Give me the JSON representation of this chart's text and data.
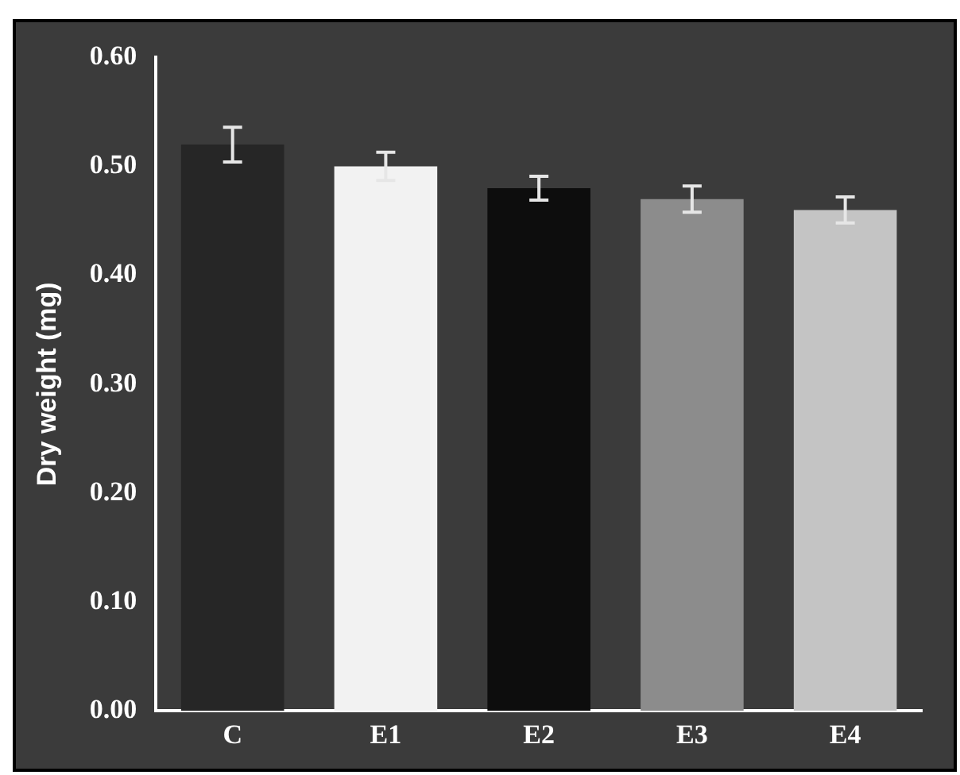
{
  "chart_data": {
    "type": "bar",
    "ylabel": "Dry weight (mg)",
    "categories": [
      "C",
      "E1",
      "E2",
      "E3",
      "E4"
    ],
    "values": [
      0.52,
      0.5,
      0.48,
      0.47,
      0.46
    ],
    "errors": [
      0.016,
      0.013,
      0.011,
      0.012,
      0.012
    ],
    "colors": [
      "#262626",
      "#f2f2f2",
      "#0d0d0d",
      "#8c8c8c",
      "#c4c4c4"
    ],
    "ylim": [
      0,
      0.6
    ],
    "yticks": [
      {
        "value": 0,
        "label": "0.00"
      },
      {
        "value": 0.1,
        "label": "0.10"
      },
      {
        "value": 0.2,
        "label": "0.20"
      },
      {
        "value": 0.3,
        "label": "0.30"
      },
      {
        "value": 0.4,
        "label": "0.40"
      },
      {
        "value": 0.5,
        "label": "0.50"
      },
      {
        "value": 0.6,
        "label": "0.60"
      }
    ],
    "grid": false,
    "legend": false
  }
}
